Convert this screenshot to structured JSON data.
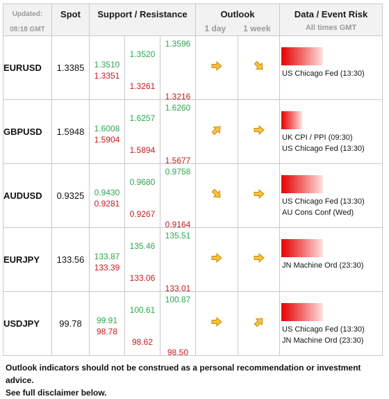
{
  "header": {
    "updated_label": "Updated:",
    "updated_time": "08:18 GMT",
    "spot": "Spot",
    "support_resistance": "Support / Resistance",
    "outlook": "Outlook",
    "outlook_1day": "1 day",
    "outlook_1week": "1 week",
    "data_event_risk": "Data / Event Risk",
    "times_note": "All times GMT"
  },
  "rows": [
    {
      "pair": "EURUSD",
      "spot": "1.3385",
      "s1_res": "1.3510",
      "s1_sup": "1.3351",
      "s2_res": "1.3520",
      "s2_sup": "1.3261",
      "s3_res": "1.3596",
      "s3_sup": "1.3216",
      "day_icon": "arrow-right-icon",
      "week_icon": "arrow-down-right-icon",
      "events": [
        "US Chicago Fed (13:30)"
      ]
    },
    {
      "pair": "GBPUSD",
      "spot": "1.5948",
      "s1_res": "1.6008",
      "s1_sup": "1.5904",
      "s2_res": "1.6257",
      "s2_sup": "1.5894",
      "s3_res": "1.6260",
      "s3_sup": "1.5677",
      "day_icon": "arrow-up-right-icon",
      "week_icon": "arrow-right-icon",
      "events": [
        "UK CPI / PPI (09:30)",
        "US Chicago Fed (13:30)"
      ]
    },
    {
      "pair": "AUDUSD",
      "spot": "0.9325",
      "s1_res": "0.9430",
      "s1_sup": "0.9281",
      "s2_res": "0.9680",
      "s2_sup": "0.9267",
      "s3_res": "0.9758",
      "s3_sup": "0.9164",
      "day_icon": "arrow-down-right-icon",
      "week_icon": "arrow-right-icon",
      "events": [
        "US Chicago Fed (13:30)",
        "AU Cons Conf (Wed)"
      ]
    },
    {
      "pair": "EURJPY",
      "spot": "133.56",
      "s1_res": "133.87",
      "s1_sup": "133.39",
      "s2_res": "135.46",
      "s2_sup": "133.06",
      "s3_res": "135.51",
      "s3_sup": "133.01",
      "day_icon": "arrow-right-icon",
      "week_icon": "arrow-right-icon",
      "events": [
        "JN Machine Ord (23:30)"
      ]
    },
    {
      "pair": "USDJPY",
      "spot": "99.78",
      "s1_res": "99.91",
      "s1_sup": "98.78",
      "s2_res": "100.61",
      "s2_sup": "98.62",
      "s3_res": "100.87",
      "s3_sup": "98.50",
      "day_icon": "arrow-right-icon",
      "week_icon": "arrow-up-right-icon",
      "events": [
        "US Chicago Fed (13:30)",
        "JN Machine Ord (23:30)"
      ]
    }
  ],
  "footer": {
    "line1": "Outlook indicators should not be construed as a personal recommendation or investment advice.",
    "line2": "See full disclaimer below."
  },
  "colors": {
    "resistance": "#2ea44f",
    "support": "#c8191d",
    "arrow_fill": "#f7c23a",
    "arrow_stroke": "#c98a10",
    "event_bar": "#e60000"
  }
}
